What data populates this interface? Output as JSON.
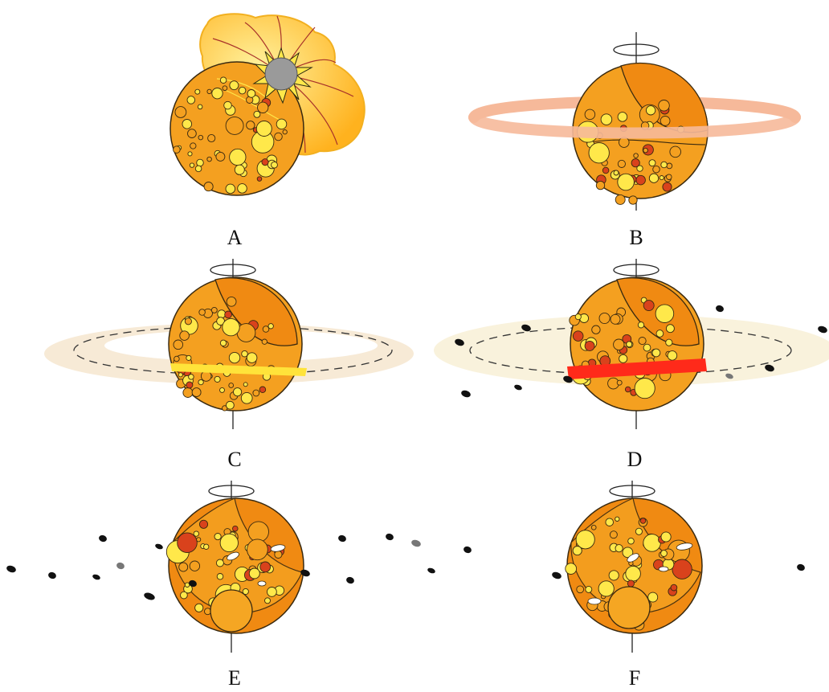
{
  "colors": {
    "body_fill": "#f4a020",
    "body_dark": "#f08a12",
    "outline": "#3a2a10",
    "clast_yellow": "#ffe84a",
    "clast_red": "#d9421c",
    "impact_cloud": "#ffd36a",
    "impact_core": "#9a9a9a",
    "ring_salmon": "#f6b99a",
    "ring_cream": "#f7ead6",
    "melt_band_yellow": "#ffe33a",
    "melt_band_red": "#ff2a1a",
    "fragment": "#111111"
  },
  "panels": [
    {
      "label": "A"
    },
    {
      "label": "B"
    },
    {
      "label": "C"
    },
    {
      "label": "D"
    },
    {
      "label": "E"
    },
    {
      "label": "F"
    }
  ]
}
